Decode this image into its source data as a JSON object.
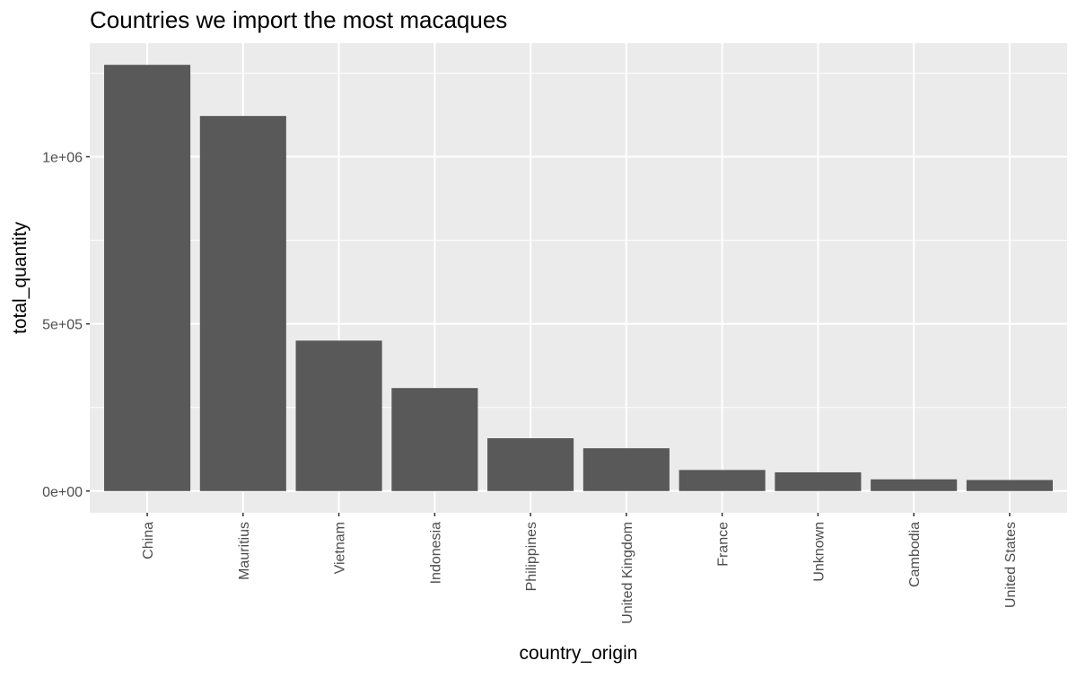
{
  "chart_data": {
    "type": "bar",
    "title": "Countries we import the most macaques",
    "xlabel": "country_origin",
    "ylabel": "total_quantity",
    "categories": [
      "China",
      "Mauritius",
      "Vietnam",
      "Indonesia",
      "Philippines",
      "United Kingdom",
      "France",
      "Unknown",
      "Cambodia",
      "United States"
    ],
    "values": [
      1275000,
      1122000,
      450000,
      308000,
      158000,
      128000,
      63000,
      56000,
      35000,
      33000
    ],
    "ylim": [
      -65000,
      1340000
    ],
    "y_major_ticks": [
      0,
      500000,
      1000000
    ],
    "y_tick_labels": [
      "0e+00",
      "5e+05",
      "1e+06"
    ],
    "y_minor_ticks": [
      250000,
      750000,
      1250000
    ],
    "grid": true,
    "theme": "ggplot2 grey",
    "colors": {
      "bar": "#595959",
      "panel": "#ebebeb",
      "grid": "#ffffff",
      "axis_text": "#4d4d4d",
      "title": "#000000"
    }
  }
}
